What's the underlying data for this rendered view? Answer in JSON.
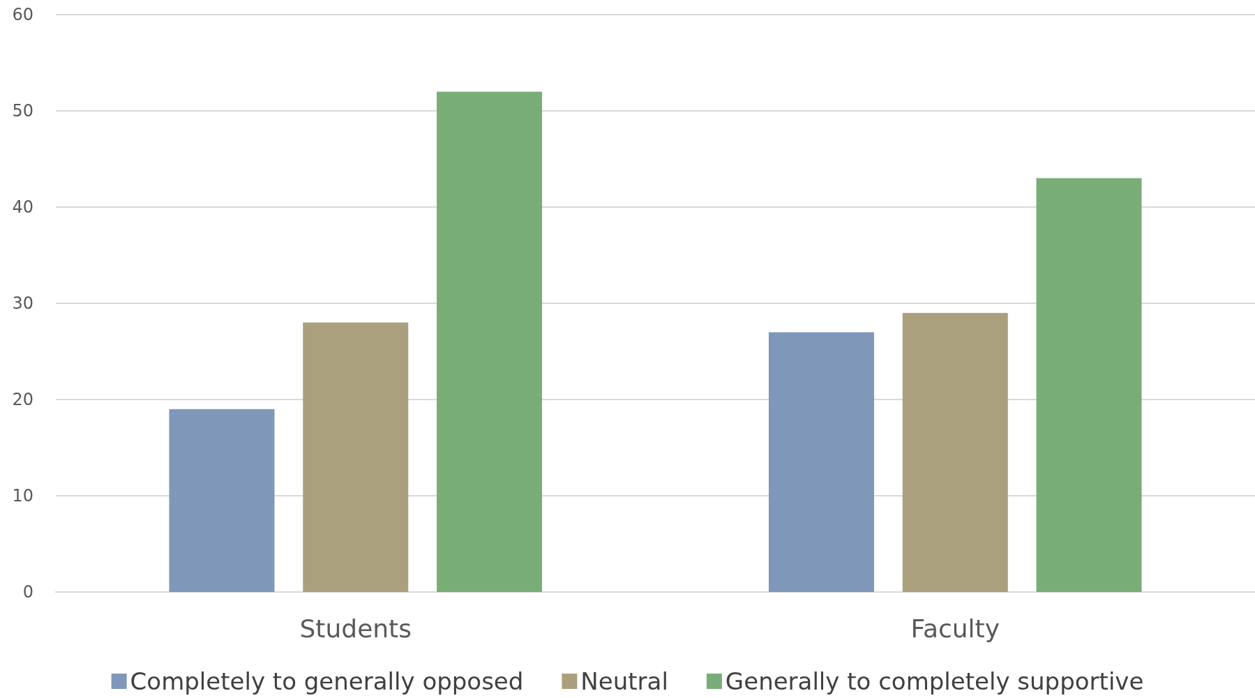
{
  "chart_data": {
    "type": "bar",
    "categories": [
      "Students",
      "Faculty"
    ],
    "series": [
      {
        "name": "Completely to generally opposed",
        "color": "#7f97b8",
        "values": [
          19,
          27
        ]
      },
      {
        "name": "Neutral",
        "color": "#aba07d",
        "values": [
          28,
          29
        ]
      },
      {
        "name": "Generally to completely supportive",
        "color": "#79ad78",
        "values": [
          52,
          43
        ]
      }
    ],
    "ylim": [
      0,
      60
    ],
    "yticks": [
      0,
      10,
      20,
      30,
      40,
      50,
      60
    ],
    "grid": "y",
    "legend": "bottom"
  }
}
